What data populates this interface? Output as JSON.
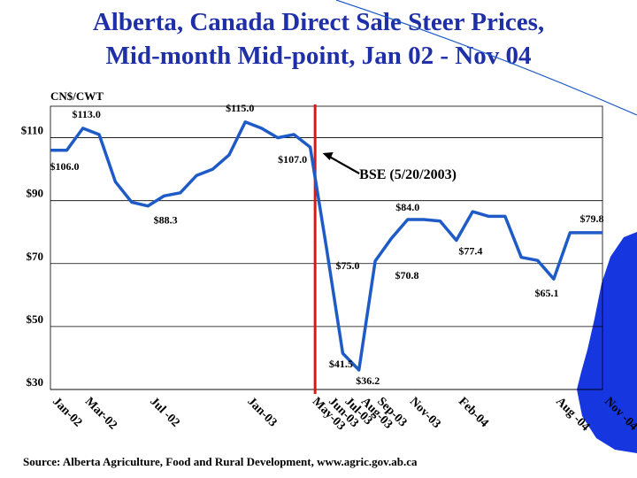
{
  "header": {
    "title_line1": "Alberta, Canada Direct Sale Steer Prices,",
    "title_line2": "Mid-month Mid-point, Jan 02 - Nov 04"
  },
  "source": "Source:  Alberta Agriculture, Food and Rural Development, www.agric.gov.ab.ca",
  "colors": {
    "title": "#1f2fa8",
    "series": "#1f5bc6",
    "event_line": "#e01515",
    "accent_shape": "#1637e0",
    "grid": "#000000"
  },
  "chart_data": {
    "type": "line",
    "title": "Alberta, Canada Direct Sale Steer Prices, Mid-month Mid-point, Jan 02 - Nov 04",
    "ylabel": "CN$/CWT",
    "xlabel": "",
    "ylim": [
      30,
      120
    ],
    "yticks": [
      30,
      50,
      70,
      90,
      110
    ],
    "ytick_labels": [
      "$30",
      "$50",
      "$70",
      "$90",
      "$110"
    ],
    "grid": true,
    "series": [
      {
        "name": "Direct Sale Steer Price",
        "x": [
          "Jan-02",
          "Feb-02",
          "Mar-02",
          "Apr-02",
          "May-02",
          "Jun-02",
          "Jul-02",
          "Aug-02",
          "Sep-02",
          "Oct-02",
          "Nov-02",
          "Dec-02",
          "Jan-03",
          "Feb-03",
          "Mar-03",
          "Apr-03",
          "May-03",
          "Jun-03",
          "Jul-03",
          "Aug-03",
          "Sep-03",
          "Oct-03",
          "Nov-03",
          "Dec-03",
          "Jan-04",
          "Feb-04",
          "Mar-04",
          "Apr-04",
          "May-04",
          "Jun-04",
          "Jul-04",
          "Aug-04",
          "Sep-04",
          "Oct-04",
          "Nov-04"
        ],
        "values": [
          106.0,
          106.0,
          113.0,
          111.0,
          96.0,
          89.5,
          88.3,
          91.5,
          92.5,
          98.0,
          100.0,
          104.5,
          115.0,
          113.0,
          110.0,
          111.0,
          107.0,
          75.0,
          41.5,
          36.2,
          70.8,
          78.0,
          84.0,
          84.0,
          83.5,
          77.4,
          86.5,
          85.0,
          85.0,
          72.0,
          71.0,
          65.1,
          79.8,
          79.8,
          79.8
        ]
      }
    ],
    "x_tick_labels": [
      {
        "label": "Jan-02",
        "index": 0
      },
      {
        "label": "Mar-02",
        "index": 2
      },
      {
        "label": "Jul -02",
        "index": 6
      },
      {
        "label": "Jan-03",
        "index": 12
      },
      {
        "label": "May-03",
        "index": 16
      },
      {
        "label": "Jun-03",
        "index": 17
      },
      {
        "label": "Jul-03",
        "index": 18
      },
      {
        "label": "Aug-03",
        "index": 19
      },
      {
        "label": "Sep-03",
        "index": 20
      },
      {
        "label": "Nov-03",
        "index": 22
      },
      {
        "label": "Feb-04",
        "index": 25
      },
      {
        "label": "Aug -04",
        "index": 31
      },
      {
        "label": "Nov -04",
        "index": 34
      }
    ],
    "data_labels": [
      {
        "text": "$113.0",
        "index": 2
      },
      {
        "text": "$106.0",
        "index": 0
      },
      {
        "text": "$88.3",
        "index": 6
      },
      {
        "text": "$115.0",
        "index": 12
      },
      {
        "text": "$107.0",
        "index": 16
      },
      {
        "text": "$75.0",
        "index": 17
      },
      {
        "text": "$41.5",
        "index": 18
      },
      {
        "text": "$36.2",
        "index": 19
      },
      {
        "text": "$70.8",
        "index": 20
      },
      {
        "text": "$84.0",
        "index": 22
      },
      {
        "text": "$77.4",
        "index": 25
      },
      {
        "text": "$65.1",
        "index": 31
      },
      {
        "text": "$79.8",
        "index": 34
      }
    ],
    "annotations": [
      {
        "text": "BSE (5/20/2003)",
        "index": 16.3
      }
    ]
  }
}
